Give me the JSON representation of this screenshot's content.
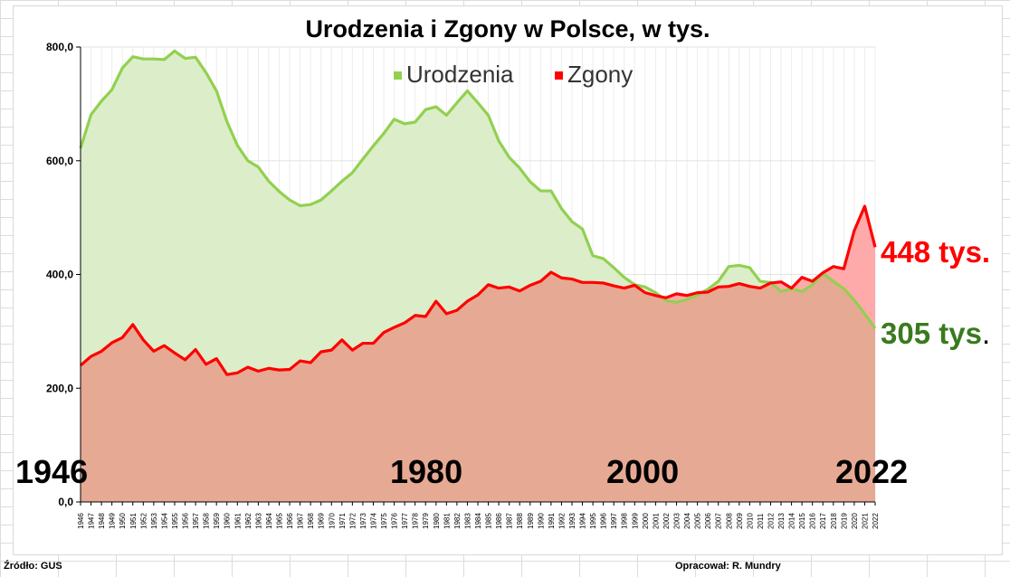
{
  "chart_data": {
    "type": "area",
    "title": "Urodzenia i Zgony w Polsce, w tys.",
    "xlabel": "",
    "ylabel": "",
    "ylim": [
      0,
      800
    ],
    "yticks": [
      "0,0",
      "200,0",
      "400,0",
      "600,0",
      "800,0"
    ],
    "grid": true,
    "legend": "top-center",
    "x": [
      1946,
      1947,
      1948,
      1949,
      1950,
      1951,
      1952,
      1953,
      1954,
      1955,
      1956,
      1957,
      1958,
      1959,
      1960,
      1961,
      1962,
      1963,
      1964,
      1965,
      1966,
      1967,
      1968,
      1969,
      1970,
      1971,
      1972,
      1973,
      1974,
      1975,
      1976,
      1977,
      1978,
      1979,
      1980,
      1981,
      1982,
      1983,
      1984,
      1985,
      1986,
      1987,
      1988,
      1989,
      1990,
      1991,
      1992,
      1993,
      1994,
      1995,
      1996,
      1997,
      1998,
      1999,
      2000,
      2001,
      2002,
      2003,
      2004,
      2005,
      2006,
      2007,
      2008,
      2009,
      2010,
      2011,
      2012,
      2013,
      2014,
      2015,
      2016,
      2017,
      2018,
      2019,
      2020,
      2021,
      2022
    ],
    "series": [
      {
        "name": "Urodzenia",
        "color": "#92d050",
        "fill": "#dbeec9",
        "values": [
          622,
          681,
          705,
          725,
          763,
          783,
          779,
          779,
          778,
          793,
          780,
          782,
          755,
          723,
          669,
          627,
          600,
          589,
          564,
          546,
          531,
          521,
          523,
          531,
          547,
          564,
          579,
          603,
          626,
          648,
          673,
          665,
          668,
          690,
          695,
          680,
          702,
          723,
          702,
          680,
          635,
          606,
          587,
          563,
          547,
          547,
          516,
          493,
          480,
          433,
          428,
          412,
          395,
          382,
          378,
          368,
          354,
          351,
          356,
          364,
          374,
          388,
          414,
          416,
          412,
          388,
          386,
          370,
          375,
          370,
          382,
          402,
          388,
          375,
          355,
          331,
          305
        ]
      },
      {
        "name": "Zgony",
        "color": "#ff0000",
        "fill_overlap": "#e6a994",
        "fill_excess": "#ffaaaa",
        "values": [
          240,
          256,
          265,
          280,
          289,
          312,
          285,
          265,
          275,
          262,
          250,
          268,
          242,
          252,
          224,
          227,
          237,
          230,
          235,
          232,
          233,
          248,
          245,
          264,
          267,
          285,
          267,
          279,
          279,
          298,
          307,
          315,
          328,
          326,
          353,
          331,
          337,
          353,
          364,
          382,
          376,
          378,
          371,
          381,
          388,
          404,
          394,
          392,
          386,
          386,
          385,
          380,
          376,
          381,
          368,
          363,
          359,
          366,
          363,
          368,
          369,
          378,
          379,
          384,
          379,
          376,
          385,
          387,
          376,
          395,
          388,
          403,
          414,
          410,
          477,
          520,
          448
        ]
      }
    ],
    "annotations": {
      "zgony_end_label": "448 tys.",
      "urodzenia_end_label": "305 tys",
      "urodzenia_end_dot": ".",
      "year_labels": [
        "1946",
        "1980",
        "2000",
        "2022"
      ]
    }
  },
  "footer": {
    "source": "Źródło: GUS",
    "author": "Opracował: R. Mundry"
  }
}
